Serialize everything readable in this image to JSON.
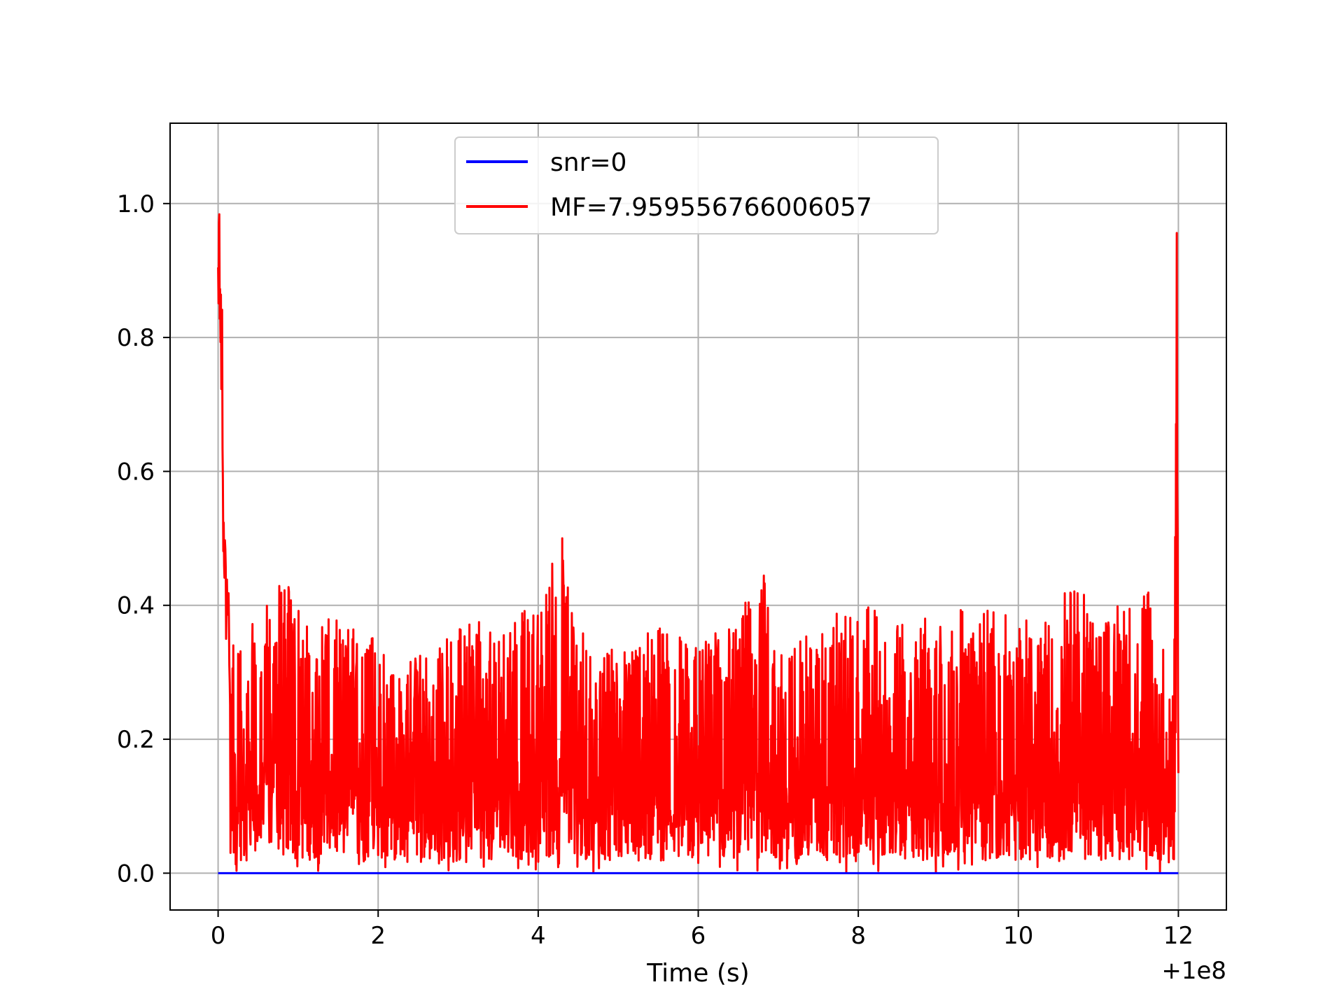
{
  "chart_data": {
    "type": "line",
    "title": "",
    "xlabel": "Time (s)",
    "ylabel": "",
    "x_offset_label": "+1e8",
    "xlim": [
      -0.6,
      12.6
    ],
    "ylim": [
      -0.055,
      1.12
    ],
    "x_ticks": [
      0,
      2,
      4,
      6,
      8,
      10,
      12
    ],
    "x_tick_labels": [
      "0",
      "2",
      "4",
      "6",
      "8",
      "10",
      "12"
    ],
    "y_ticks": [
      0.0,
      0.2,
      0.4,
      0.6,
      0.8,
      1.0
    ],
    "y_tick_labels": [
      "0.0",
      "0.2",
      "0.4",
      "0.6",
      "0.8",
      "1.0"
    ],
    "grid": true,
    "legend_position": "top-center",
    "series": [
      {
        "name": "snr=0",
        "color": "#0000ff",
        "x": [
          0,
          12
        ],
        "y": [
          0,
          0
        ]
      },
      {
        "name": "MF=7.959556766006057",
        "color": "#ff0000",
        "noise_band": [
          0.0,
          0.4
        ],
        "x": [
          0.0,
          0.01,
          0.02,
          0.03,
          0.04,
          0.05,
          0.06,
          0.08,
          0.1,
          0.12,
          0.15,
          0.2,
          0.3,
          0.5,
          0.7,
          0.9,
          1.1,
          1.3,
          1.5,
          1.8,
          2.0,
          2.1,
          2.5,
          3.0,
          3.5,
          4.0,
          4.3,
          4.5,
          5.0,
          5.5,
          6.0,
          6.5,
          6.8,
          7.0,
          7.5,
          8.0,
          8.5,
          9.0,
          9.5,
          10.0,
          10.5,
          10.7,
          11.0,
          11.5,
          11.6,
          11.9,
          11.95,
          11.98,
          12.0
        ],
        "y": [
          0.99,
          1.07,
          0.9,
          1.0,
          0.78,
          0.9,
          0.62,
          0.55,
          0.45,
          0.49,
          0.3,
          0.41,
          0.35,
          0.4,
          0.43,
          0.43,
          0.38,
          0.4,
          0.38,
          0.36,
          0.43,
          0.3,
          0.33,
          0.37,
          0.38,
          0.4,
          0.51,
          0.37,
          0.33,
          0.37,
          0.35,
          0.38,
          0.46,
          0.34,
          0.37,
          0.41,
          0.37,
          0.39,
          0.4,
          0.38,
          0.42,
          0.44,
          0.38,
          0.42,
          0.43,
          0.3,
          0.35,
          0.96,
          0.15
        ]
      }
    ]
  }
}
